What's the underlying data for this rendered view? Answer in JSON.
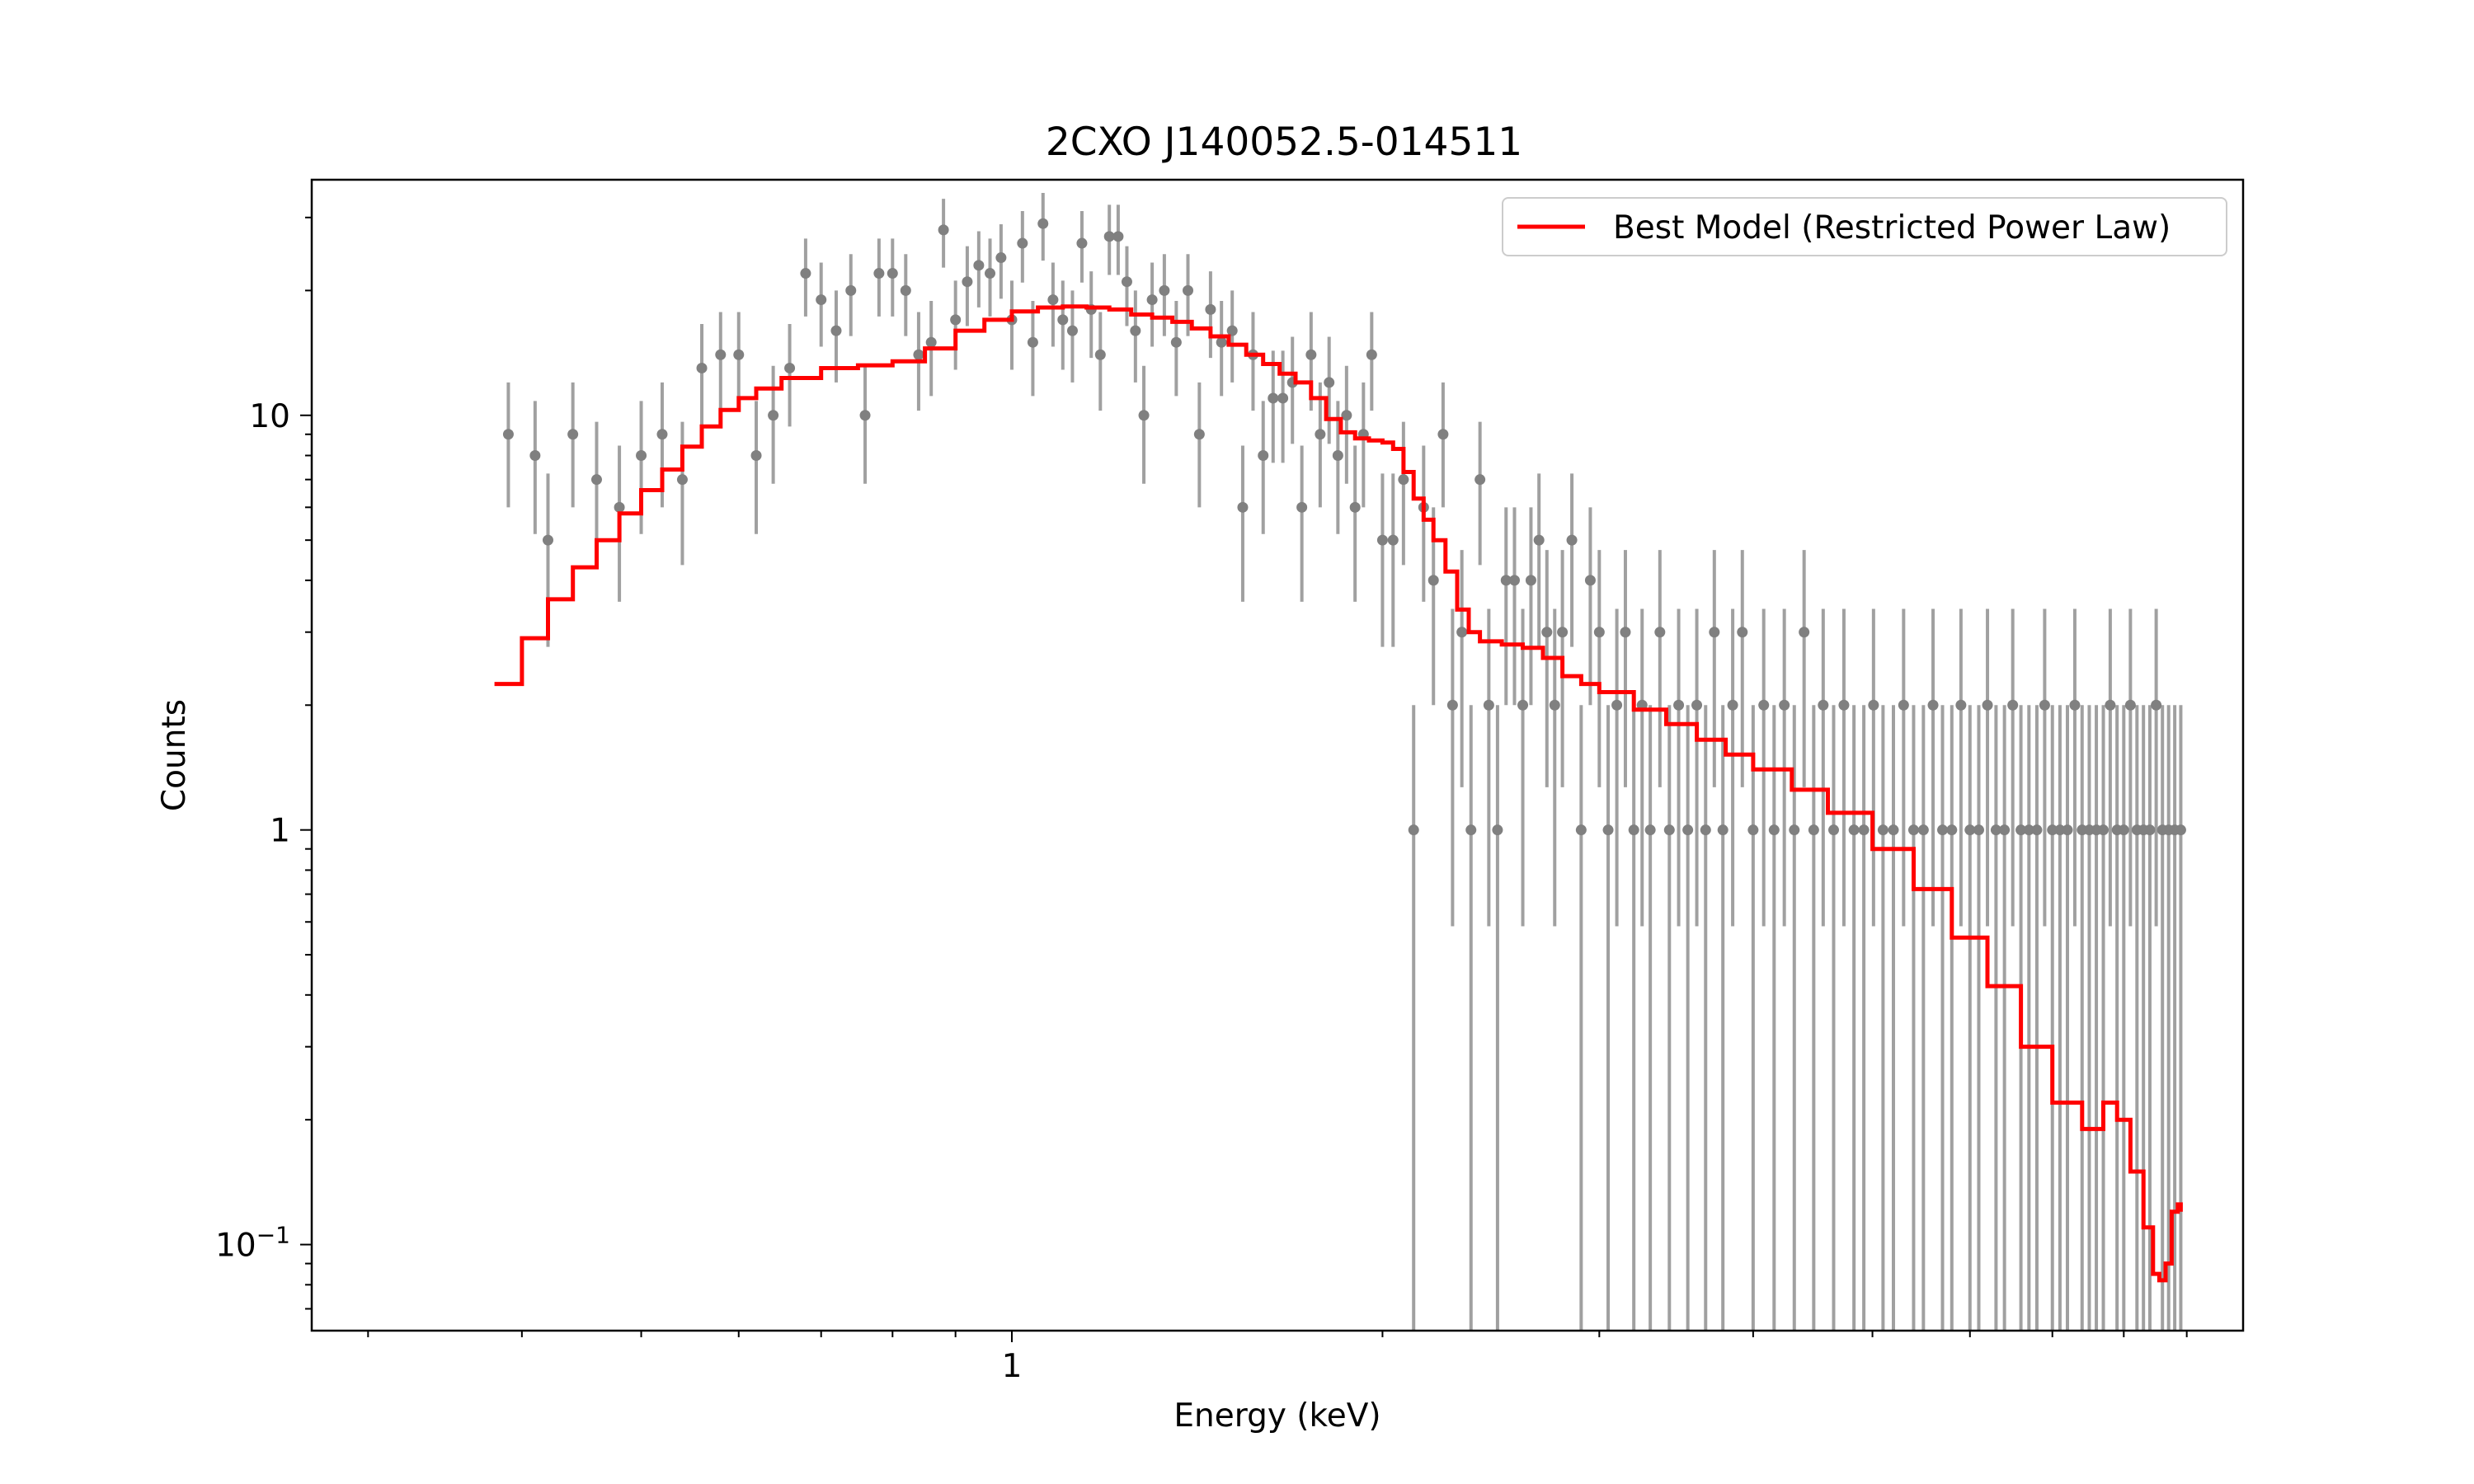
{
  "chart_data": {
    "type": "scatter",
    "title": "2CXO J140052.5-014511",
    "xlabel": "Energy (keV)",
    "ylabel": "Counts",
    "xscale": "log",
    "yscale": "log",
    "xlim": [
      0.27,
      10.0
    ],
    "ylim": [
      0.062,
      37.0
    ],
    "xticks": [
      {
        "value": 1,
        "label": "1"
      }
    ],
    "yticks": [
      {
        "value": 0.1,
        "label": "10−1",
        "base": "10",
        "exp": "−1"
      },
      {
        "value": 1,
        "label": "1"
      },
      {
        "value": 10,
        "label": "10"
      }
    ],
    "grid": false,
    "legend": {
      "placement": "top-right",
      "entries": [
        "Best Model (Restricted Power Law)"
      ]
    },
    "colors": {
      "data": "#808080",
      "model": "#ff0000",
      "axes": "#000000"
    },
    "series": [
      {
        "name": "",
        "kind": "data-with-errorbars",
        "points": [
          [
            0.39,
            9
          ],
          [
            0.41,
            8
          ],
          [
            0.42,
            5
          ],
          [
            0.44,
            9
          ],
          [
            0.46,
            7
          ],
          [
            0.48,
            6
          ],
          [
            0.5,
            8
          ],
          [
            0.52,
            9
          ],
          [
            0.54,
            7
          ],
          [
            0.56,
            13
          ],
          [
            0.58,
            14
          ],
          [
            0.6,
            14
          ],
          [
            0.62,
            8
          ],
          [
            0.64,
            10
          ],
          [
            0.66,
            13
          ],
          [
            0.68,
            22
          ],
          [
            0.7,
            19
          ],
          [
            0.72,
            16
          ],
          [
            0.74,
            20
          ],
          [
            0.76,
            10
          ],
          [
            0.78,
            22
          ],
          [
            0.8,
            22
          ],
          [
            0.82,
            20
          ],
          [
            0.84,
            14
          ],
          [
            0.86,
            15
          ],
          [
            0.88,
            28
          ],
          [
            0.9,
            17
          ],
          [
            0.92,
            21
          ],
          [
            0.94,
            23
          ],
          [
            0.96,
            22
          ],
          [
            0.98,
            24
          ],
          [
            1.0,
            17
          ],
          [
            1.02,
            26
          ],
          [
            1.04,
            15
          ],
          [
            1.06,
            29
          ],
          [
            1.08,
            19
          ],
          [
            1.1,
            17
          ],
          [
            1.12,
            16
          ],
          [
            1.14,
            26
          ],
          [
            1.16,
            18
          ],
          [
            1.18,
            14
          ],
          [
            1.2,
            27
          ],
          [
            1.22,
            27
          ],
          [
            1.24,
            21
          ],
          [
            1.26,
            16
          ],
          [
            1.28,
            10
          ],
          [
            1.3,
            19
          ],
          [
            1.33,
            20
          ],
          [
            1.36,
            15
          ],
          [
            1.39,
            20
          ],
          [
            1.42,
            9
          ],
          [
            1.45,
            18
          ],
          [
            1.48,
            15
          ],
          [
            1.51,
            16
          ],
          [
            1.54,
            6
          ],
          [
            1.57,
            14
          ],
          [
            1.6,
            8
          ],
          [
            1.63,
            11
          ],
          [
            1.66,
            11
          ],
          [
            1.69,
            12
          ],
          [
            1.72,
            6
          ],
          [
            1.75,
            14
          ],
          [
            1.78,
            9
          ],
          [
            1.81,
            12
          ],
          [
            1.84,
            8
          ],
          [
            1.87,
            10
          ],
          [
            1.9,
            6
          ],
          [
            1.93,
            9
          ],
          [
            1.96,
            14
          ],
          [
            2.0,
            5
          ],
          [
            2.04,
            5
          ],
          [
            2.08,
            7
          ],
          [
            2.12,
            1
          ],
          [
            2.16,
            6
          ],
          [
            2.2,
            4
          ],
          [
            2.24,
            9
          ],
          [
            2.28,
            2
          ],
          [
            2.32,
            3
          ],
          [
            2.36,
            1
          ],
          [
            2.4,
            7
          ],
          [
            2.44,
            2
          ],
          [
            2.48,
            1
          ],
          [
            2.52,
            4
          ],
          [
            2.56,
            4
          ],
          [
            2.6,
            2
          ],
          [
            2.64,
            4
          ],
          [
            2.68,
            5
          ],
          [
            2.72,
            3
          ],
          [
            2.76,
            2
          ],
          [
            2.8,
            3
          ],
          [
            2.85,
            5
          ],
          [
            2.9,
            1
          ],
          [
            2.95,
            4
          ],
          [
            3.0,
            3
          ],
          [
            3.05,
            1
          ],
          [
            3.1,
            2
          ],
          [
            3.15,
            3
          ],
          [
            3.2,
            1
          ],
          [
            3.25,
            2
          ],
          [
            3.3,
            1
          ],
          [
            3.36,
            3
          ],
          [
            3.42,
            1
          ],
          [
            3.48,
            2
          ],
          [
            3.54,
            1
          ],
          [
            3.6,
            2
          ],
          [
            3.66,
            1
          ],
          [
            3.72,
            3
          ],
          [
            3.78,
            1
          ],
          [
            3.85,
            2
          ],
          [
            3.92,
            3
          ],
          [
            4.0,
            1
          ],
          [
            4.08,
            2
          ],
          [
            4.16,
            1
          ],
          [
            4.24,
            2
          ],
          [
            4.32,
            1
          ],
          [
            4.4,
            3
          ],
          [
            4.48,
            1
          ],
          [
            4.56,
            2
          ],
          [
            4.65,
            1
          ],
          [
            4.74,
            2
          ],
          [
            4.83,
            1
          ],
          [
            4.92,
            1
          ],
          [
            5.01,
            2
          ],
          [
            5.1,
            1
          ],
          [
            5.2,
            1
          ],
          [
            5.3,
            2
          ],
          [
            5.4,
            1
          ],
          [
            5.5,
            1
          ],
          [
            5.6,
            2
          ],
          [
            5.7,
            1
          ],
          [
            5.8,
            1
          ],
          [
            5.9,
            2
          ],
          [
            6.0,
            1
          ],
          [
            6.1,
            1
          ],
          [
            6.2,
            2
          ],
          [
            6.3,
            1
          ],
          [
            6.4,
            1
          ],
          [
            6.5,
            2
          ],
          [
            6.6,
            1
          ],
          [
            6.7,
            1
          ],
          [
            6.8,
            1
          ],
          [
            6.9,
            2
          ],
          [
            7.0,
            1
          ],
          [
            7.1,
            1
          ],
          [
            7.2,
            1
          ],
          [
            7.3,
            2
          ],
          [
            7.4,
            1
          ],
          [
            7.5,
            1
          ],
          [
            7.6,
            1
          ],
          [
            7.7,
            1
          ],
          [
            7.8,
            2
          ],
          [
            7.9,
            1
          ],
          [
            8.0,
            1
          ],
          [
            8.1,
            2
          ],
          [
            8.2,
            1
          ],
          [
            8.3,
            1
          ],
          [
            8.4,
            1
          ],
          [
            8.5,
            2
          ],
          [
            8.6,
            1
          ],
          [
            8.7,
            1
          ],
          [
            8.8,
            1
          ],
          [
            8.9,
            1
          ]
        ]
      },
      {
        "name": "Best Model (Restricted Power Law)",
        "kind": "model-line",
        "points": [
          [
            0.38,
            2.25
          ],
          [
            0.4,
            2.9
          ],
          [
            0.42,
            3.6
          ],
          [
            0.44,
            4.3
          ],
          [
            0.46,
            5.0
          ],
          [
            0.48,
            5.8
          ],
          [
            0.5,
            6.6
          ],
          [
            0.52,
            7.4
          ],
          [
            0.54,
            8.4
          ],
          [
            0.56,
            9.4
          ],
          [
            0.58,
            10.3
          ],
          [
            0.6,
            11.0
          ],
          [
            0.62,
            11.6
          ],
          [
            0.65,
            12.3
          ],
          [
            0.7,
            13.0
          ],
          [
            0.75,
            13.2
          ],
          [
            0.8,
            13.5
          ],
          [
            0.85,
            14.5
          ],
          [
            0.9,
            16.0
          ],
          [
            0.95,
            17.0
          ],
          [
            1.0,
            17.8
          ],
          [
            1.05,
            18.2
          ],
          [
            1.1,
            18.3
          ],
          [
            1.15,
            18.2
          ],
          [
            1.2,
            18.0
          ],
          [
            1.25,
            17.5
          ],
          [
            1.3,
            17.2
          ],
          [
            1.35,
            16.8
          ],
          [
            1.4,
            16.2
          ],
          [
            1.45,
            15.5
          ],
          [
            1.5,
            14.8
          ],
          [
            1.55,
            14.0
          ],
          [
            1.6,
            13.3
          ],
          [
            1.65,
            12.6
          ],
          [
            1.7,
            12.0
          ],
          [
            1.75,
            11.0
          ],
          [
            1.8,
            9.8
          ],
          [
            1.85,
            9.1
          ],
          [
            1.9,
            8.8
          ],
          [
            1.95,
            8.7
          ],
          [
            2.0,
            8.6
          ],
          [
            2.04,
            8.3
          ],
          [
            2.08,
            7.3
          ],
          [
            2.12,
            6.3
          ],
          [
            2.16,
            5.6
          ],
          [
            2.2,
            5.0
          ],
          [
            2.25,
            4.2
          ],
          [
            2.3,
            3.4
          ],
          [
            2.35,
            3.0
          ],
          [
            2.4,
            2.85
          ],
          [
            2.5,
            2.8
          ],
          [
            2.6,
            2.75
          ],
          [
            2.7,
            2.6
          ],
          [
            2.8,
            2.35
          ],
          [
            2.9,
            2.25
          ],
          [
            3.0,
            2.15
          ],
          [
            3.2,
            1.95
          ],
          [
            3.4,
            1.8
          ],
          [
            3.6,
            1.65
          ],
          [
            3.8,
            1.52
          ],
          [
            4.0,
            1.4
          ],
          [
            4.3,
            1.25
          ],
          [
            4.6,
            1.1
          ],
          [
            5.0,
            0.9
          ],
          [
            5.4,
            0.72
          ],
          [
            5.8,
            0.55
          ],
          [
            6.2,
            0.42
          ],
          [
            6.6,
            0.3
          ],
          [
            7.0,
            0.22
          ],
          [
            7.4,
            0.19
          ],
          [
            7.7,
            0.22
          ],
          [
            7.9,
            0.2
          ],
          [
            8.1,
            0.15
          ],
          [
            8.3,
            0.11
          ],
          [
            8.45,
            0.085
          ],
          [
            8.55,
            0.082
          ],
          [
            8.65,
            0.09
          ],
          [
            8.75,
            0.12
          ],
          [
            8.85,
            0.125
          ],
          [
            8.9,
            0.12
          ]
        ]
      }
    ]
  }
}
